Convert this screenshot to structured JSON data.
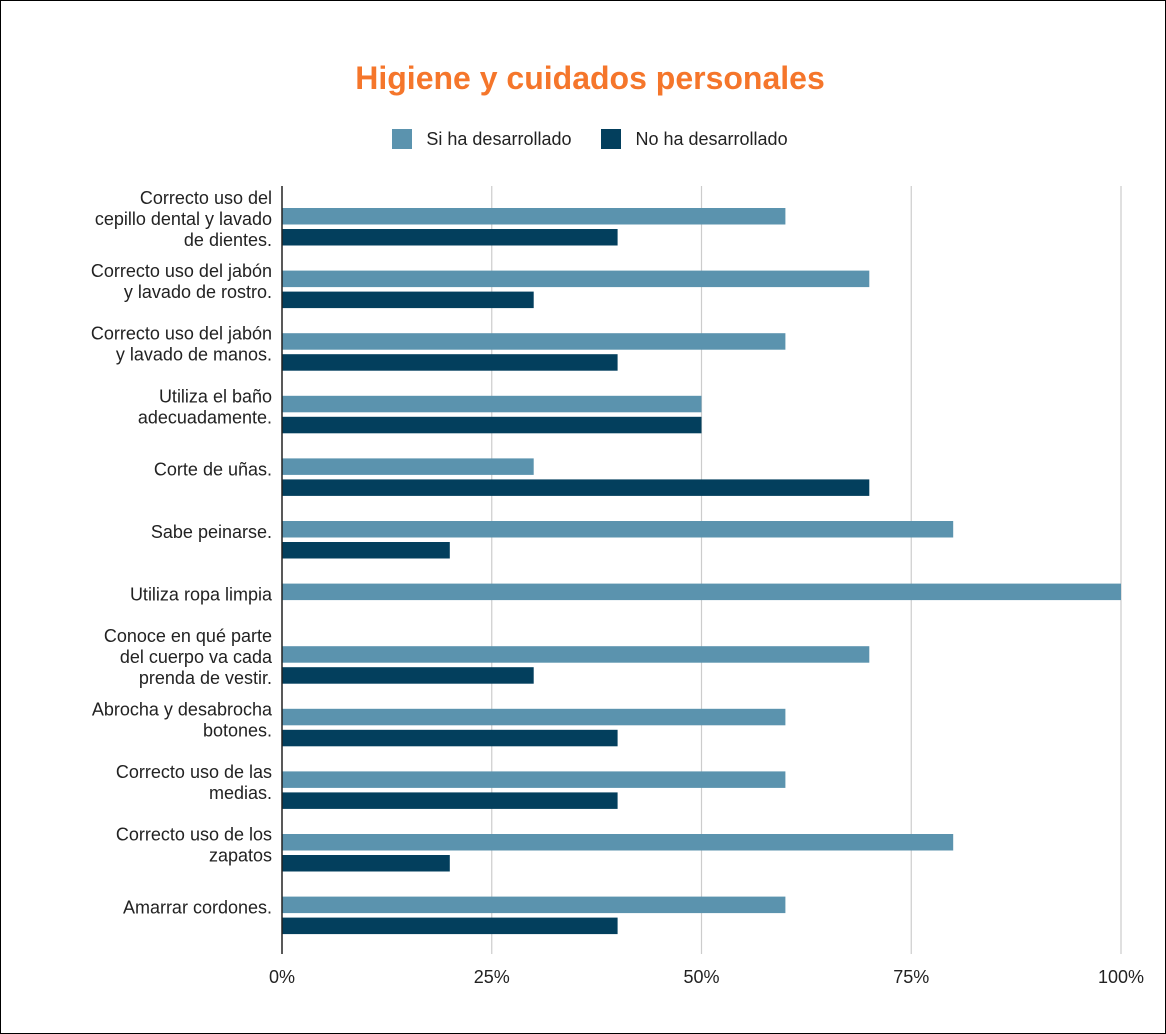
{
  "chart_data": {
    "type": "bar",
    "orientation": "horizontal",
    "title": "Higiene y cuidados personales",
    "xlabel": "",
    "ylabel": "",
    "xlim": [
      0,
      100
    ],
    "x_ticks": [
      "0%",
      "25%",
      "50%",
      "75%",
      "100%"
    ],
    "grid": true,
    "legend_position": "top",
    "categories": [
      [
        "Correcto uso del",
        "cepillo dental y lavado",
        "de dientes."
      ],
      [
        "Correcto uso del jabón",
        "y lavado de rostro."
      ],
      [
        "Correcto uso del jabón",
        "y lavado de manos."
      ],
      [
        "Utiliza el baño",
        "adecuadamente."
      ],
      [
        "Corte de uñas."
      ],
      [
        "Sabe peinarse."
      ],
      [
        "Utiliza ropa limpia"
      ],
      [
        "Conoce en qué parte",
        "del cuerpo va cada",
        "prenda de vestir."
      ],
      [
        "Abrocha y desabrocha",
        "botones."
      ],
      [
        "Correcto uso de las",
        "medias."
      ],
      [
        "Correcto uso de los",
        "zapatos"
      ],
      [
        "Amarrar cordones."
      ]
    ],
    "series": [
      {
        "name": "Si ha desarrollado",
        "color": "#5b93ae",
        "values": [
          60,
          70,
          60,
          50,
          30,
          80,
          100,
          70,
          60,
          60,
          80,
          60
        ]
      },
      {
        "name": "No ha desarrollado",
        "color": "#033f5d",
        "values": [
          40,
          30,
          40,
          50,
          70,
          20,
          0,
          30,
          40,
          40,
          20,
          40
        ]
      }
    ]
  },
  "colors": {
    "title": "#f5762b",
    "grid": "#cccccc",
    "axis": "#222222"
  }
}
